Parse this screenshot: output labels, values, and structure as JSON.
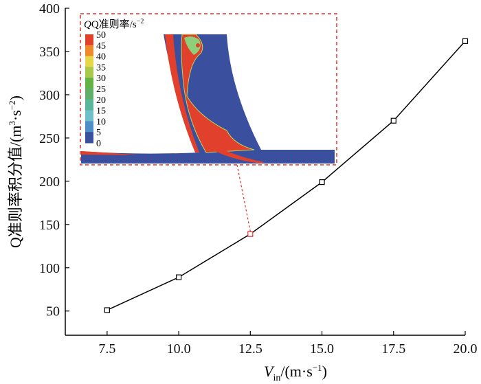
{
  "chart_data": {
    "type": "line",
    "title": "",
    "xlabel": {
      "main": "V",
      "sub": "in",
      "unit": "/(m·s",
      "sup": "−1",
      "close": ")"
    },
    "ylabel": {
      "main": "Q准则率积分值/(m",
      "sup1": "3",
      "mid": "·s",
      "sup2": "−2",
      "close": ")"
    },
    "x": [
      7.5,
      10.0,
      12.5,
      15.0,
      17.5,
      20.0
    ],
    "values": [
      51,
      89,
      139,
      199,
      270,
      362
    ],
    "highlight_index": 2,
    "xlim": [
      6.04,
      20.0
    ],
    "ylim": [
      22,
      400
    ],
    "xticks": [
      "7.5",
      "10.0",
      "12.5",
      "15.0",
      "17.5",
      "20.0"
    ],
    "yticks": [
      "50",
      "100",
      "150",
      "200",
      "250",
      "300",
      "350",
      "400"
    ],
    "grid": false,
    "line_color": "#000000",
    "highlight_color": "#e0302a"
  },
  "inset": {
    "title": "Q准则率",
    "unit": "/s",
    "unit_sup": "−2",
    "colorbar_labels": [
      "50",
      "45",
      "40",
      "35",
      "30",
      "25",
      "20",
      "15",
      "10",
      "5",
      "0"
    ],
    "colorbar_colors": [
      "#e0402c",
      "#ef8a2a",
      "#e6d64a",
      "#a8c94a",
      "#63b245",
      "#5fae6a",
      "#58b79a",
      "#6fc0c8",
      "#4e8ec8",
      "#3b4f9f"
    ]
  }
}
